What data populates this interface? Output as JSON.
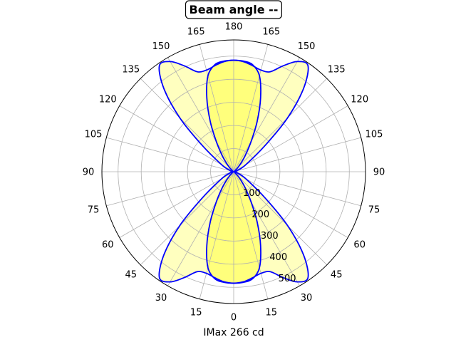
{
  "chart_data": {
    "type": "polar-area",
    "title": "Beam angle --",
    "xlabel": "IMax 266 cd",
    "angle_ticks": [
      {
        "label": "180",
        "angle": 0
      },
      {
        "label": "165",
        "angle": 15
      },
      {
        "label": "150",
        "angle": 30
      },
      {
        "label": "135",
        "angle": 45
      },
      {
        "label": "120",
        "angle": 60
      },
      {
        "label": "105",
        "angle": 75
      },
      {
        "label": "90",
        "angle": 90
      },
      {
        "label": "75",
        "angle": 105
      },
      {
        "label": "60",
        "angle": 120
      },
      {
        "label": "45",
        "angle": 135
      },
      {
        "label": "30",
        "angle": 150
      },
      {
        "label": "15",
        "angle": 165
      },
      {
        "label": "0",
        "angle": 180
      },
      {
        "label": "15",
        "angle": 195
      },
      {
        "label": "30",
        "angle": 210
      },
      {
        "label": "45",
        "angle": 225
      },
      {
        "label": "60",
        "angle": 240
      },
      {
        "label": "75",
        "angle": 255
      },
      {
        "label": "90",
        "angle": 270
      },
      {
        "label": "105",
        "angle": 285
      },
      {
        "label": "120",
        "angle": 300
      },
      {
        "label": "135",
        "angle": 315
      },
      {
        "label": "150",
        "angle": 330
      },
      {
        "label": "165",
        "angle": 345
      }
    ],
    "radial_ticks": [
      100,
      200,
      300,
      400,
      500
    ],
    "rlim": [
      0,
      570
    ],
    "grid": true,
    "fill_color": "#ffff00",
    "line_color": "#0000ff",
    "series": [
      {
        "angles": [
          0,
          5,
          10,
          15,
          20,
          25,
          30,
          35,
          40,
          45,
          50,
          60,
          70,
          80,
          90
        ],
        "values": [
          482,
          478,
          466,
          455,
          460,
          505,
          550,
          560,
          470,
          330,
          180,
          60,
          20,
          8,
          0
        ]
      },
      {
        "angles": [
          0,
          5,
          10,
          15,
          20,
          25,
          30,
          35,
          40,
          45,
          50,
          60,
          70,
          80,
          90
        ],
        "values": [
          482,
          480,
          470,
          430,
          340,
          240,
          150,
          90,
          50,
          25,
          10,
          5,
          2,
          1,
          0
        ]
      }
    ]
  }
}
